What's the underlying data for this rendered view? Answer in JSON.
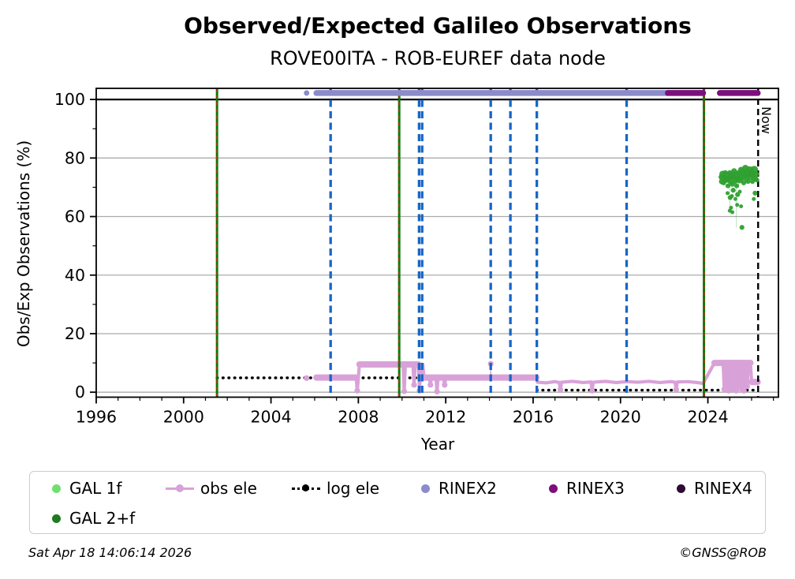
{
  "header": {
    "title": "Observed/Expected Galileo Observations",
    "subtitle": "ROVE00ITA - ROB-EUREF data node"
  },
  "footer": {
    "timestamp": "Sat Apr 18 14:06:14 2026",
    "credit": "©GNSS@ROB"
  },
  "legend": {
    "items": [
      {
        "id": "gal1f",
        "label": "GAL 1f",
        "marker": "dot",
        "color": "#70DF70"
      },
      {
        "id": "obs-ele",
        "label": "obs ele",
        "marker": "line-dot",
        "color": "#D8A2D8"
      },
      {
        "id": "log-ele",
        "label": "log ele",
        "marker": "dotted-line",
        "color": "#000000"
      },
      {
        "id": "rinex2",
        "label": "RINEX2",
        "marker": "dot",
        "color": "#8C8CCB"
      },
      {
        "id": "rinex3",
        "label": "RINEX3",
        "marker": "dot",
        "color": "#7D0E7D"
      },
      {
        "id": "rinex4",
        "label": "RINEX4",
        "marker": "dot",
        "color": "#2E0B33"
      },
      {
        "id": "gal2f",
        "label": "GAL 2+f",
        "marker": "dot",
        "color": "#1E7B1E"
      }
    ]
  },
  "chart_data": {
    "type": "line+scatter",
    "title": "Observed/Expected Galileo Observations",
    "subtitle": "ROVE00ITA - ROB-EUREF data node",
    "xlabel": "Year",
    "ylabel": "Obs/Exp Observations (%)",
    "xlim": [
      1996,
      2027.23
    ],
    "ylim": [
      -1.7,
      103.8
    ],
    "xticks": [
      1996,
      2000,
      2004,
      2008,
      2012,
      2016,
      2020,
      2024
    ],
    "yticks": [
      0,
      20,
      40,
      60,
      80,
      100
    ],
    "yticks_minor": [
      10,
      30,
      50,
      70,
      90
    ],
    "grid": "horizontal-only",
    "hline_100": 100,
    "now": {
      "year": 2026.3,
      "label": "Now"
    },
    "event_lines": {
      "green_solid_red_dashed": [
        2001.53,
        2009.87,
        2023.82
      ],
      "blue_dashed": [
        2006.73,
        2010.78,
        2010.92,
        2014.06,
        2014.96,
        2016.17,
        2020.28
      ]
    },
    "colors": {
      "obs_ele": "#D8A2D8",
      "log_ele": "#000000",
      "rinex2": "#8C8CCB",
      "rinex3": "#7D0E7D",
      "rinex4": "#2E0B33",
      "gal1f": "#70DF70",
      "gal2f": "#2FA02F",
      "green_line": "#007D00",
      "red_overlay": "#D62020",
      "blue_line": "#1766C6",
      "now_line": "#000000",
      "grid": "#ABABAB",
      "hline100": "#000000"
    },
    "rinex2": {
      "level": 102.2,
      "start_point": 2005.63,
      "run": [
        2006.08,
        2022.17
      ]
    },
    "rinex3": {
      "level": 102.2,
      "runs": [
        [
          2022.17,
          2023.78
        ],
        [
          2024.55,
          2026.28
        ]
      ]
    },
    "rinex4": {
      "runs": []
    },
    "log_ele": {
      "segments": [
        [
          [
            2001.53,
            4.9
          ],
          [
            2016.17,
            4.9
          ]
        ],
        [
          [
            2016.17,
            0.7
          ],
          [
            2026.3,
            0.7
          ]
        ]
      ]
    },
    "obs_ele": {
      "line": [
        [
          2006.08,
          5
        ],
        [
          2007.9,
          5
        ],
        [
          2007.95,
          0.5
        ],
        [
          2008.0,
          5
        ],
        [
          2008.05,
          9.5
        ],
        [
          2010.05,
          9.5
        ],
        [
          2010.1,
          0.3
        ],
        [
          2010.15,
          9.5
        ],
        [
          2010.5,
          9.5
        ],
        [
          2010.55,
          2.5
        ],
        [
          2010.6,
          9.5
        ],
        [
          2010.75,
          9.5
        ],
        [
          2010.8,
          0.5
        ],
        [
          2010.85,
          9.5
        ],
        [
          2010.95,
          9.5
        ],
        [
          2011.0,
          5
        ],
        [
          2011.25,
          5
        ],
        [
          2011.3,
          2.5
        ],
        [
          2011.35,
          5
        ],
        [
          2011.55,
          5
        ],
        [
          2011.6,
          0.2
        ],
        [
          2011.65,
          5
        ],
        [
          2011.9,
          5
        ],
        [
          2011.95,
          2.5
        ],
        [
          2012.0,
          5
        ],
        [
          2016.15,
          5
        ],
        [
          2016.2,
          3.4
        ],
        [
          2016.6,
          3.2
        ],
        [
          2017.0,
          3.6
        ],
        [
          2017.2,
          3.3
        ],
        [
          2017.25,
          0.9
        ],
        [
          2017.3,
          3.4
        ],
        [
          2017.8,
          3.7
        ],
        [
          2018.3,
          3.3
        ],
        [
          2018.65,
          3.5
        ],
        [
          2018.7,
          0.5
        ],
        [
          2018.75,
          3.4
        ],
        [
          2019.3,
          3.7
        ],
        [
          2019.8,
          3.3
        ],
        [
          2020.3,
          3.6
        ],
        [
          2020.8,
          3.4
        ],
        [
          2021.3,
          3.7
        ],
        [
          2021.8,
          3.3
        ],
        [
          2022.3,
          3.6
        ],
        [
          2022.5,
          3.4
        ],
        [
          2022.55,
          0.9
        ],
        [
          2022.6,
          3.5
        ],
        [
          2023.1,
          3.6
        ],
        [
          2023.5,
          3.3
        ],
        [
          2023.78,
          3.0
        ],
        [
          2024.3,
          10
        ],
        [
          2024.7,
          10
        ],
        [
          2024.75,
          1
        ],
        [
          2024.8,
          10
        ],
        [
          2024.85,
          2
        ],
        [
          2024.9,
          10
        ],
        [
          2024.95,
          0.5
        ],
        [
          2025.0,
          10
        ],
        [
          2025.05,
          2
        ],
        [
          2025.1,
          10
        ],
        [
          2025.15,
          1
        ],
        [
          2025.2,
          10
        ],
        [
          2025.3,
          0.5
        ],
        [
          2025.35,
          10
        ],
        [
          2025.4,
          2
        ],
        [
          2025.45,
          10
        ],
        [
          2025.55,
          1
        ],
        [
          2025.6,
          10
        ],
        [
          2025.65,
          0.5
        ],
        [
          2025.7,
          10
        ],
        [
          2025.8,
          2
        ],
        [
          2025.85,
          10
        ],
        [
          2025.95,
          10
        ],
        [
          2026.0,
          3.5
        ],
        [
          2026.28,
          3.5
        ]
      ],
      "thick_runs": [
        [
          2006.08,
          2007.9,
          5
        ],
        [
          2008.05,
          2010.75,
          9.5
        ],
        [
          2011.0,
          2016.15,
          5
        ],
        [
          2024.3,
          2025.95,
          10
        ],
        [
          2026.0,
          2026.28,
          3.5
        ]
      ],
      "isolated_points": [
        [
          2005.63,
          4.8
        ],
        [
          2014.06,
          9.7
        ]
      ],
      "stems": [
        [
          [
            2014.06,
            5
          ],
          [
            2014.06,
            9.7
          ]
        ]
      ],
      "drop_markers": [
        [
          2007.95,
          0.5
        ],
        [
          2010.1,
          0.3
        ],
        [
          2010.55,
          2.5
        ],
        [
          2010.8,
          0.5
        ],
        [
          2011.3,
          2.5
        ],
        [
          2011.6,
          0.2
        ],
        [
          2011.95,
          2.5
        ],
        [
          2017.25,
          0.9
        ],
        [
          2018.7,
          0.5
        ],
        [
          2022.55,
          0.9
        ],
        [
          2024.75,
          1
        ],
        [
          2024.85,
          2
        ],
        [
          2024.95,
          0.5
        ],
        [
          2025.05,
          2
        ],
        [
          2025.15,
          1
        ],
        [
          2025.3,
          0.5
        ],
        [
          2025.4,
          2
        ],
        [
          2025.55,
          1
        ],
        [
          2025.65,
          0.5
        ],
        [
          2025.8,
          2
        ]
      ]
    },
    "gal2f": {
      "stems": [
        [
          [
            2025.0,
            73
          ],
          [
            2025.0,
            62
          ]
        ],
        [
          [
            2025.3,
            72
          ],
          [
            2025.3,
            56.3
          ]
        ]
      ],
      "points": [
        [
          2024.6,
          73.5,
          5
        ],
        [
          2024.64,
          72,
          6
        ],
        [
          2024.68,
          74.5,
          7
        ],
        [
          2024.72,
          71.5,
          5
        ],
        [
          2024.76,
          73,
          8
        ],
        [
          2024.8,
          75,
          5
        ],
        [
          2024.84,
          72.5,
          6
        ],
        [
          2024.88,
          74,
          7
        ],
        [
          2024.92,
          70.5,
          5
        ],
        [
          2024.96,
          73,
          6
        ],
        [
          2025.0,
          75,
          5
        ],
        [
          2025.04,
          72,
          6
        ],
        [
          2025.08,
          74,
          8
        ],
        [
          2025.12,
          71,
          5
        ],
        [
          2025.16,
          73.5,
          6
        ],
        [
          2025.2,
          75.5,
          6
        ],
        [
          2025.24,
          72,
          5
        ],
        [
          2025.28,
          74,
          8
        ],
        [
          2025.32,
          70.5,
          5
        ],
        [
          2025.36,
          73,
          6
        ],
        [
          2025.4,
          75,
          5
        ],
        [
          2025.44,
          72.5,
          7
        ],
        [
          2025.48,
          74,
          6
        ],
        [
          2025.52,
          76,
          6
        ],
        [
          2025.56,
          73,
          5
        ],
        [
          2025.6,
          75,
          7
        ],
        [
          2025.64,
          71.5,
          5
        ],
        [
          2025.68,
          74,
          6
        ],
        [
          2025.72,
          76.5,
          7
        ],
        [
          2025.76,
          73,
          6
        ],
        [
          2025.8,
          75,
          8
        ],
        [
          2025.84,
          72,
          5
        ],
        [
          2025.88,
          74.5,
          6
        ],
        [
          2025.92,
          76,
          7
        ],
        [
          2025.96,
          73.5,
          6
        ],
        [
          2026.0,
          75,
          6
        ],
        [
          2026.04,
          72,
          5
        ],
        [
          2026.08,
          74,
          6
        ],
        [
          2026.12,
          76,
          8
        ],
        [
          2026.16,
          73,
          6
        ],
        [
          2026.2,
          74.5,
          6
        ],
        [
          2026.24,
          72.5,
          5
        ],
        [
          2024.9,
          68,
          4
        ],
        [
          2025.02,
          66.5,
          5
        ],
        [
          2025.1,
          67,
          4
        ],
        [
          2025.16,
          69,
          5
        ],
        [
          2025.26,
          66,
          4
        ],
        [
          2025.36,
          67.5,
          5
        ],
        [
          2025.46,
          68.5,
          4
        ],
        [
          2025.06,
          63,
          4
        ],
        [
          2025.0,
          62,
          4
        ],
        [
          2025.12,
          61.5,
          4
        ],
        [
          2025.34,
          64,
          4
        ],
        [
          2025.52,
          63.5,
          4
        ],
        [
          2025.56,
          56.3,
          5
        ],
        [
          2026.16,
          68,
          5
        ],
        [
          2026.1,
          66,
          4
        ]
      ]
    },
    "gal1f": {
      "points": []
    }
  }
}
